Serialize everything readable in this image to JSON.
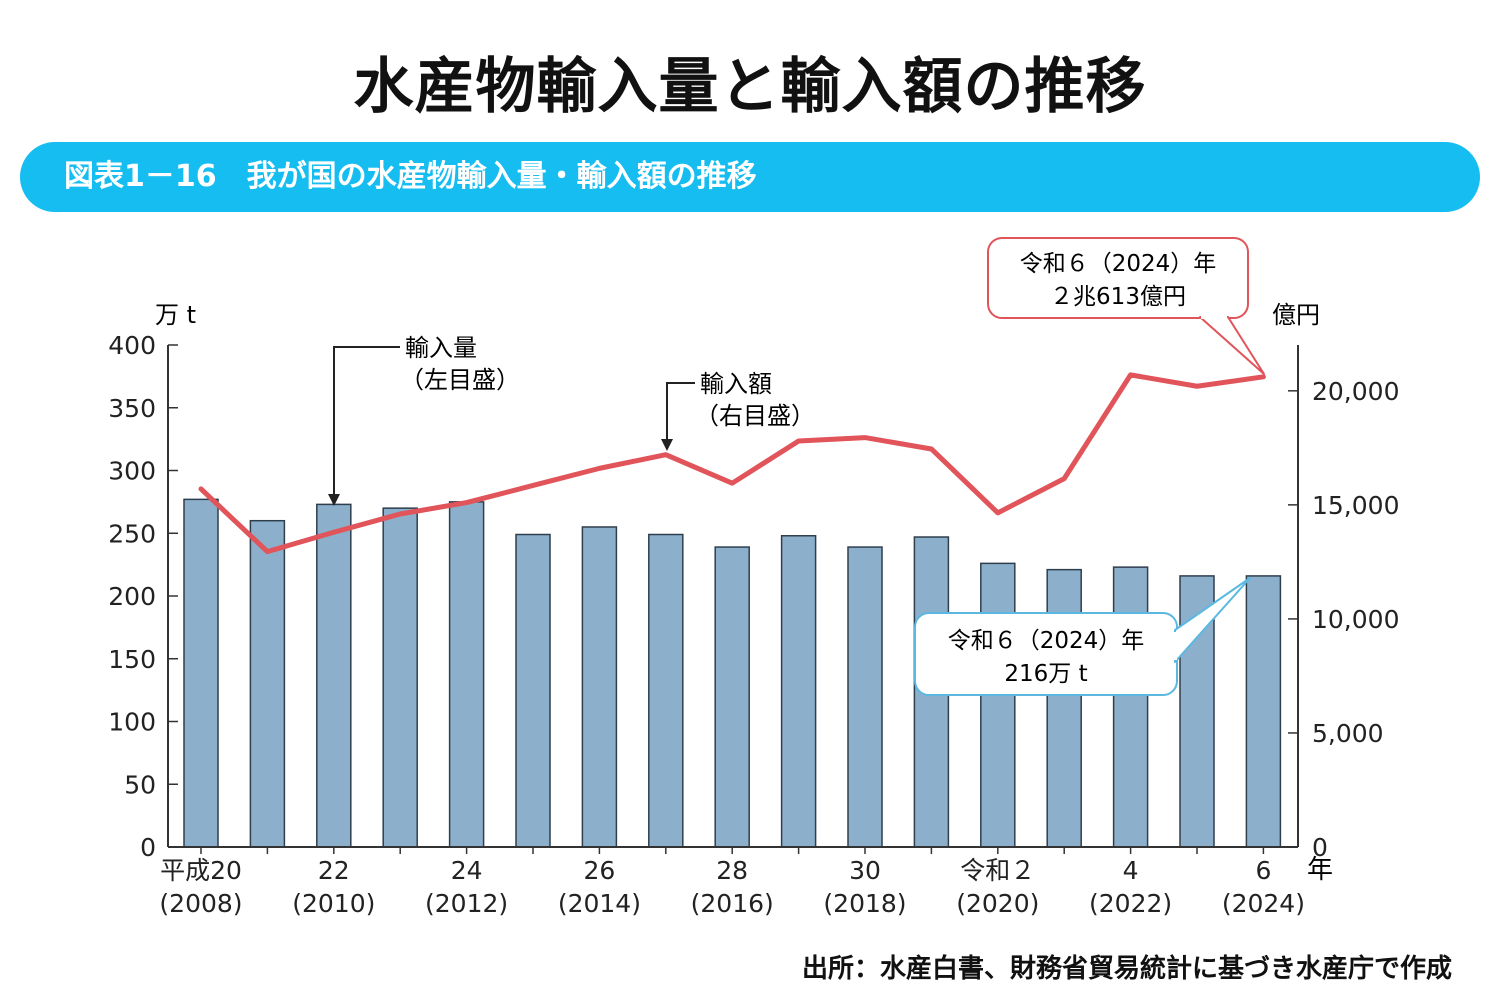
{
  "page_title": "水産物輸入量と輸入額の推移",
  "figure_caption": "図表1－16　我が国の水産物輸入量・輸入額の推移",
  "source_note": "出所：水産白書、財務省貿易統計に基づき水産庁で作成",
  "colors": {
    "banner": "#16bdf0",
    "bar_fill": "#8cb0cc",
    "bar_stroke": "#2f3e4d",
    "line": "#e0545a",
    "callout_red_border": "#e0545a",
    "callout_blue_border": "#5bb8e0",
    "axis": "#333333"
  },
  "chart_data": {
    "type": "bar+line",
    "title": "我が国の水産物輸入量・輸入額の推移",
    "left_axis": {
      "unit": "万 t",
      "min": 0,
      "max": 400,
      "ticks": [
        "0",
        "50",
        "100",
        "150",
        "200",
        "250",
        "300",
        "350",
        "400"
      ],
      "tick_values": [
        0,
        50,
        100,
        150,
        200,
        250,
        300,
        350,
        400
      ]
    },
    "right_axis": {
      "unit": "億円",
      "min": 0,
      "max": 22000,
      "ticks": [
        "0",
        "5,000",
        "10,000",
        "15,000",
        "20,000"
      ],
      "tick_values": [
        0,
        5000,
        10000,
        15000,
        20000
      ]
    },
    "x_unit": "年",
    "years": [
      2008,
      2009,
      2010,
      2011,
      2012,
      2013,
      2014,
      2015,
      2016,
      2017,
      2018,
      2019,
      2020,
      2021,
      2022,
      2023,
      2024
    ],
    "x_labels": [
      {
        "index": 0,
        "line1": "平成20",
        "line2": "(2008)"
      },
      {
        "index": 2,
        "line1": "22",
        "line2": "(2010)"
      },
      {
        "index": 4,
        "line1": "24",
        "line2": "(2012)"
      },
      {
        "index": 6,
        "line1": "26",
        "line2": "(2014)"
      },
      {
        "index": 8,
        "line1": "28",
        "line2": "(2016)"
      },
      {
        "index": 10,
        "line1": "30",
        "line2": "(2018)"
      },
      {
        "index": 12,
        "line1": "令和２",
        "line2": "(2020)"
      },
      {
        "index": 14,
        "line1": "4",
        "line2": "(2022)"
      },
      {
        "index": 16,
        "line1": "6",
        "line2": "(2024)"
      }
    ],
    "series": [
      {
        "name": "輸入量",
        "axis": "left",
        "type": "bar",
        "values": [
          277,
          260,
          273,
          270,
          275,
          249,
          255,
          249,
          239,
          248,
          239,
          247,
          226,
          221,
          223,
          216,
          216
        ]
      },
      {
        "name": "輸入額",
        "axis": "right",
        "type": "line",
        "values": [
          15700,
          12950,
          13800,
          14600,
          15100,
          15850,
          16600,
          17200,
          15950,
          17800,
          17950,
          17450,
          14650,
          16150,
          20700,
          20200,
          20613
        ]
      }
    ],
    "annotations": {
      "volume_label": {
        "line1": "輸入量",
        "line2": "（左目盛）"
      },
      "value_label": {
        "line1": "輸入額",
        "line2": "（右目盛）"
      },
      "callout_value": {
        "line1": "令和６（2024）年",
        "line2": "２兆613億円"
      },
      "callout_volume": {
        "line1": "令和６（2024）年",
        "line2": "216万 t"
      }
    }
  }
}
